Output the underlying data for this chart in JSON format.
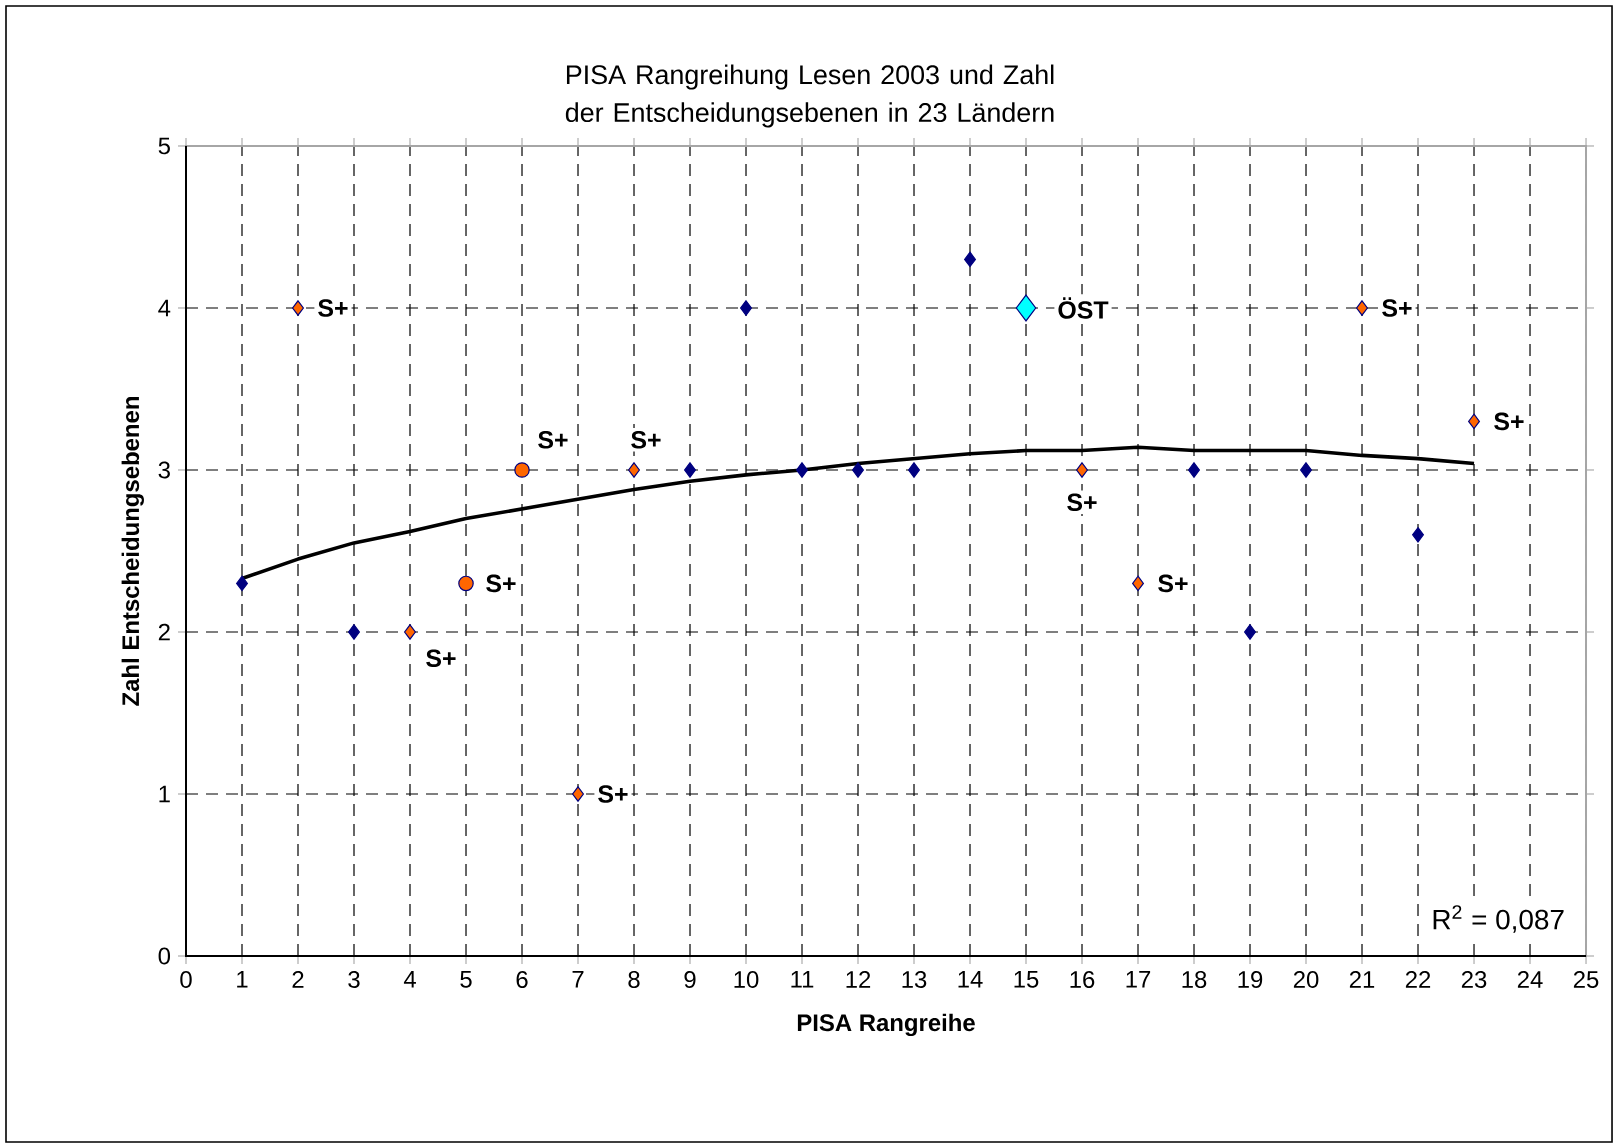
{
  "chart_data": {
    "type": "scatter",
    "title": "PISA Rangreihung Lesen 2003 und Zahl der Entscheidungsebenen in 23 Ländern",
    "xlabel": "PISA Rangreihe",
    "ylabel": "Zahl Entscheidungsebenen",
    "xlim": [
      0,
      25
    ],
    "xticks": [
      0,
      1,
      2,
      3,
      4,
      5,
      6,
      7,
      8,
      9,
      10,
      11,
      12,
      13,
      14,
      15,
      16,
      17,
      18,
      19,
      20,
      21,
      22,
      23,
      24,
      25
    ],
    "ylim": [
      0,
      5
    ],
    "yticks": [
      0,
      1,
      2,
      3,
      4,
      5
    ],
    "grid": true,
    "series": [
      {
        "color": "#000080",
        "marker": "diamond",
        "x": [
          1,
          3,
          9,
          10,
          11,
          12,
          13,
          14,
          18,
          19,
          20,
          22
        ],
        "values": [
          2.3,
          2,
          3,
          4,
          3,
          3,
          3,
          4.3,
          3,
          2,
          3,
          2.6
        ]
      },
      {
        "color": "#ff6600",
        "marker": "diamond",
        "x": [
          2,
          4,
          7,
          8,
          16,
          17,
          21,
          23
        ],
        "values": [
          4,
          2,
          1,
          3,
          3,
          2.3,
          4,
          3.3
        ]
      },
      {
        "color": "#ff6600",
        "marker": "circle",
        "x": [
          5,
          6
        ],
        "values": [
          2.3,
          3
        ]
      },
      {
        "color": "#00ffff",
        "marker": "diamond",
        "x": [
          15
        ],
        "values": [
          4
        ]
      },
      {
        "type": "line",
        "color": "#000000",
        "marker": "none",
        "line_style": "solid",
        "x": [
          1,
          2,
          3,
          4,
          5,
          6,
          7,
          8,
          9,
          10,
          11,
          12,
          13,
          14,
          15,
          16,
          17,
          18,
          19,
          20,
          21,
          22,
          23
        ],
        "values": [
          2.33,
          2.45,
          2.55,
          2.62,
          2.7,
          2.76,
          2.82,
          2.88,
          2.93,
          2.97,
          3.0,
          3.04,
          3.07,
          3.1,
          3.12,
          3.12,
          3.14,
          3.12,
          3.12,
          3.12,
          3.09,
          3.07,
          3.04
        ]
      }
    ],
    "annotations": [
      {
        "text": "S+",
        "x": 2,
        "y": 4
      },
      {
        "text": "S+",
        "x": 4,
        "y": 2
      },
      {
        "text": "S+",
        "x": 5,
        "y": 2.3
      },
      {
        "text": "S+",
        "x": 6,
        "y": 3
      },
      {
        "text": "S+",
        "x": 8,
        "y": 3
      },
      {
        "text": "S+",
        "x": 7,
        "y": 1
      },
      {
        "text": "S+",
        "x": 16,
        "y": 3
      },
      {
        "text": "S+",
        "x": 17,
        "y": 2.3
      },
      {
        "text": "S+",
        "x": 21,
        "y": 4
      },
      {
        "text": "S+",
        "x": 23,
        "y": 3.3
      },
      {
        "text": "ÖST",
        "x": 15,
        "y": 4
      },
      "R$^{2}$ = 0,087"
    ]
  }
}
